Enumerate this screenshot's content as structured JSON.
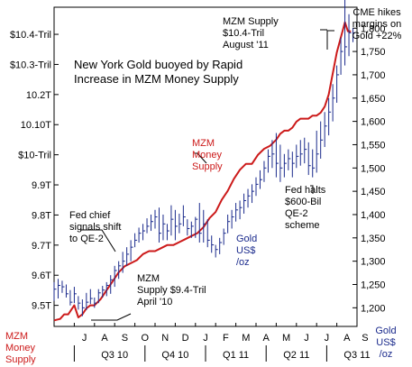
{
  "chart_data": {
    "type": "line",
    "title": "New York Gold buoyed by Rapid Increase in MZM Money Supply",
    "title_lines": [
      "New York Gold buoyed by Rapid",
      "Increase in MZM Money Supply"
    ],
    "left_axis": {
      "label_lines": [
        "MZM",
        "Money",
        "Supply"
      ],
      "ticks": [
        {
          "label": "9.5T",
          "value": 9.5
        },
        {
          "label": "9.6T",
          "value": 9.6
        },
        {
          "label": "9.7T",
          "value": 9.7
        },
        {
          "label": "9.8T",
          "value": 9.8
        },
        {
          "label": "9.9T",
          "value": 9.9
        },
        {
          "label": "$10-Tril",
          "value": 10.0
        },
        {
          "label": "10.10T",
          "value": 10.1
        },
        {
          "label": "10.2T",
          "value": 10.2
        },
        {
          "label": "$10.3-Tril",
          "value": 10.3
        },
        {
          "label": "$10.4-Tril",
          "value": 10.4
        }
      ],
      "ylim": [
        9.43,
        10.49
      ]
    },
    "right_axis": {
      "label_lines": [
        "Gold",
        "US$",
        "/oz"
      ],
      "ticks": [
        {
          "label": "1,200",
          "value": 1200
        },
        {
          "label": "1,250",
          "value": 1250
        },
        {
          "label": "1,300",
          "value": 1300
        },
        {
          "label": "1,350",
          "value": 1350
        },
        {
          "label": "1,400",
          "value": 1400
        },
        {
          "label": "1,450",
          "value": 1450
        },
        {
          "label": "1,500",
          "value": 1500
        },
        {
          "label": "1,550",
          "value": 1550
        },
        {
          "label": "1,600",
          "value": 1600
        },
        {
          "label": "1,650",
          "value": 1650
        },
        {
          "label": "1,700",
          "value": 1700
        },
        {
          "label": "1,750",
          "value": 1750
        },
        {
          "label": "1,800",
          "value": 1800
        }
      ],
      "ylim": [
        1160,
        1845
      ]
    },
    "xlim": [
      0,
      15
    ],
    "month_labels": [
      {
        "label": "J",
        "at": 1.5
      },
      {
        "label": "A",
        "at": 2.5
      },
      {
        "label": "S",
        "at": 3.5
      },
      {
        "label": "O",
        "at": 4.5
      },
      {
        "label": "N",
        "at": 5.5
      },
      {
        "label": "D",
        "at": 6.5
      },
      {
        "label": "J",
        "at": 7.5
      },
      {
        "label": "F",
        "at": 8.5
      },
      {
        "label": "M",
        "at": 9.5
      },
      {
        "label": "A",
        "at": 10.5
      },
      {
        "label": "M",
        "at": 11.5
      },
      {
        "label": "J",
        "at": 12.5
      },
      {
        "label": "J",
        "at": 13.5
      },
      {
        "label": "A",
        "at": 14.5
      },
      {
        "label": "S",
        "at": 15.4
      }
    ],
    "quarter_labels": [
      {
        "label": "Q3 10",
        "at": 3.0
      },
      {
        "label": "Q4 10",
        "at": 6.0
      },
      {
        "label": "Q1 11",
        "at": 9.0
      },
      {
        "label": "Q2 11",
        "at": 12.0
      },
      {
        "label": "Q3 11",
        "at": 15.0
      }
    ],
    "quarter_dividers": [
      1.0,
      4.5,
      7.5,
      10.5,
      13.5
    ],
    "series": [
      {
        "name": "MZM Money Supply",
        "axis": "left",
        "color": "#cc1a1a",
        "x": [
          0.0,
          0.3,
          0.5,
          0.7,
          1.0,
          1.2,
          1.4,
          1.6,
          1.8,
          2.0,
          2.3,
          2.6,
          2.9,
          3.2,
          3.5,
          3.8,
          4.1,
          4.4,
          4.7,
          5.0,
          5.3,
          5.6,
          5.9,
          6.2,
          6.5,
          6.8,
          7.1,
          7.4,
          7.7,
          8.0,
          8.3,
          8.6,
          8.9,
          9.2,
          9.5,
          9.8,
          10.1,
          10.4,
          10.7,
          11.0,
          11.2,
          11.4,
          11.6,
          11.8,
          12.0,
          12.2,
          12.4,
          12.6,
          12.8,
          13.0,
          13.2,
          13.4,
          13.6,
          13.8,
          14.0,
          14.2,
          14.4,
          14.55,
          14.7
        ],
        "values": [
          9.45,
          9.455,
          9.47,
          9.47,
          9.5,
          9.46,
          9.47,
          9.49,
          9.5,
          9.5,
          9.52,
          9.55,
          9.58,
          9.61,
          9.63,
          9.64,
          9.65,
          9.67,
          9.68,
          9.68,
          9.69,
          9.7,
          9.7,
          9.71,
          9.72,
          9.73,
          9.74,
          9.76,
          9.79,
          9.81,
          9.85,
          9.88,
          9.92,
          9.95,
          9.97,
          9.97,
          10.0,
          10.02,
          10.03,
          10.05,
          10.07,
          10.08,
          10.08,
          10.09,
          10.11,
          10.12,
          10.12,
          10.12,
          10.13,
          10.13,
          10.14,
          10.16,
          10.2,
          10.27,
          10.34,
          10.39,
          10.44,
          10.41,
          10.41
        ]
      },
      {
        "name": "Gold US$ /oz",
        "axis": "right",
        "color": "#1a2a8c",
        "type": "ohlc",
        "x": [
          0.0,
          0.2,
          0.4,
          0.6,
          0.8,
          1.0,
          1.2,
          1.4,
          1.6,
          1.8,
          2.0,
          2.2,
          2.4,
          2.6,
          2.8,
          3.0,
          3.2,
          3.4,
          3.6,
          3.8,
          4.0,
          4.2,
          4.4,
          4.6,
          4.8,
          5.0,
          5.2,
          5.4,
          5.6,
          5.8,
          6.0,
          6.2,
          6.4,
          6.6,
          6.8,
          7.0,
          7.2,
          7.4,
          7.6,
          7.8,
          8.0,
          8.2,
          8.4,
          8.6,
          8.8,
          9.0,
          9.2,
          9.4,
          9.6,
          9.8,
          10.0,
          10.2,
          10.4,
          10.6,
          10.8,
          11.0,
          11.2,
          11.4,
          11.6,
          11.8,
          12.0,
          12.2,
          12.4,
          12.6,
          12.8,
          13.0,
          13.2,
          13.4,
          13.6,
          13.8,
          14.0,
          14.2,
          14.4,
          14.6,
          14.8
        ],
        "high": [
          1255,
          1262,
          1258,
          1250,
          1238,
          1245,
          1225,
          1218,
          1232,
          1240,
          1222,
          1240,
          1247,
          1255,
          1270,
          1290,
          1300,
          1320,
          1330,
          1345,
          1360,
          1372,
          1380,
          1392,
          1400,
          1410,
          1415,
          1400,
          1380,
          1420,
          1410,
          1402,
          1420,
          1390,
          1385,
          1395,
          1425,
          1410,
          1390,
          1355,
          1335,
          1350,
          1370,
          1400,
          1410,
          1425,
          1430,
          1445,
          1455,
          1465,
          1480,
          1495,
          1515,
          1540,
          1560,
          1575,
          1550,
          1530,
          1540,
          1535,
          1550,
          1560,
          1565,
          1555,
          1540,
          1580,
          1600,
          1620,
          1650,
          1680,
          1720,
          1780,
          1890,
          1830,
          1800
        ],
        "low": [
          1215,
          1220,
          1232,
          1222,
          1205,
          1210,
          1196,
          1182,
          1195,
          1208,
          1200,
          1210,
          1222,
          1225,
          1230,
          1245,
          1262,
          1275,
          1290,
          1300,
          1330,
          1340,
          1345,
          1360,
          1365,
          1370,
          1340,
          1345,
          1345,
          1355,
          1345,
          1360,
          1375,
          1355,
          1350,
          1350,
          1340,
          1340,
          1330,
          1318,
          1308,
          1315,
          1335,
          1360,
          1370,
          1385,
          1390,
          1402,
          1415,
          1425,
          1440,
          1455,
          1470,
          1490,
          1500,
          1480,
          1470,
          1480,
          1495,
          1480,
          1500,
          1505,
          1510,
          1485,
          1480,
          1490,
          1520,
          1545,
          1570,
          1600,
          1640,
          1700,
          1720,
          1740,
          1770
        ],
        "close": [
          1240,
          1248,
          1245,
          1230,
          1212,
          1230,
          1210,
          1200,
          1212,
          1220,
          1210,
          1232,
          1238,
          1248,
          1260,
          1280,
          1290,
          1300,
          1315,
          1330,
          1345,
          1360,
          1365,
          1375,
          1385,
          1395,
          1360,
          1380,
          1365,
          1390,
          1375,
          1380,
          1395,
          1370,
          1375,
          1390,
          1360,
          1380,
          1345,
          1335,
          1325,
          1340,
          1360,
          1385,
          1395,
          1410,
          1415,
          1430,
          1440,
          1450,
          1465,
          1475,
          1500,
          1525,
          1530,
          1510,
          1500,
          1510,
          1520,
          1510,
          1525,
          1530,
          1540,
          1505,
          1500,
          1530,
          1560,
          1590,
          1620,
          1650,
          1700,
          1750,
          1760,
          1790,
          1790
        ]
      }
    ],
    "annotations": [
      {
        "lines": [
          "MZM Supply",
          "$10.4-Tril",
          "August '11"
        ],
        "color": "#000000"
      },
      {
        "lines": [
          "CME hikes",
          "margins on",
          "Gold +22%"
        ],
        "color": "#000000"
      },
      {
        "lines": [
          "MZM",
          "Money",
          "Supply"
        ],
        "color": "#cc1a1a"
      },
      {
        "lines": [
          "Fed chief",
          "signals shift",
          "to QE-2"
        ],
        "color": "#000000"
      },
      {
        "lines": [
          "Gold",
          "US$",
          "/oz"
        ],
        "color": "#1a2a8c"
      },
      {
        "lines": [
          "Fed halts",
          "$600-Bil",
          "QE-2",
          "scheme"
        ],
        "color": "#000000"
      },
      {
        "lines": [
          "MZM",
          "Supply $9.4-Tril",
          "April '10"
        ],
        "color": "#000000"
      }
    ],
    "grid": false
  }
}
